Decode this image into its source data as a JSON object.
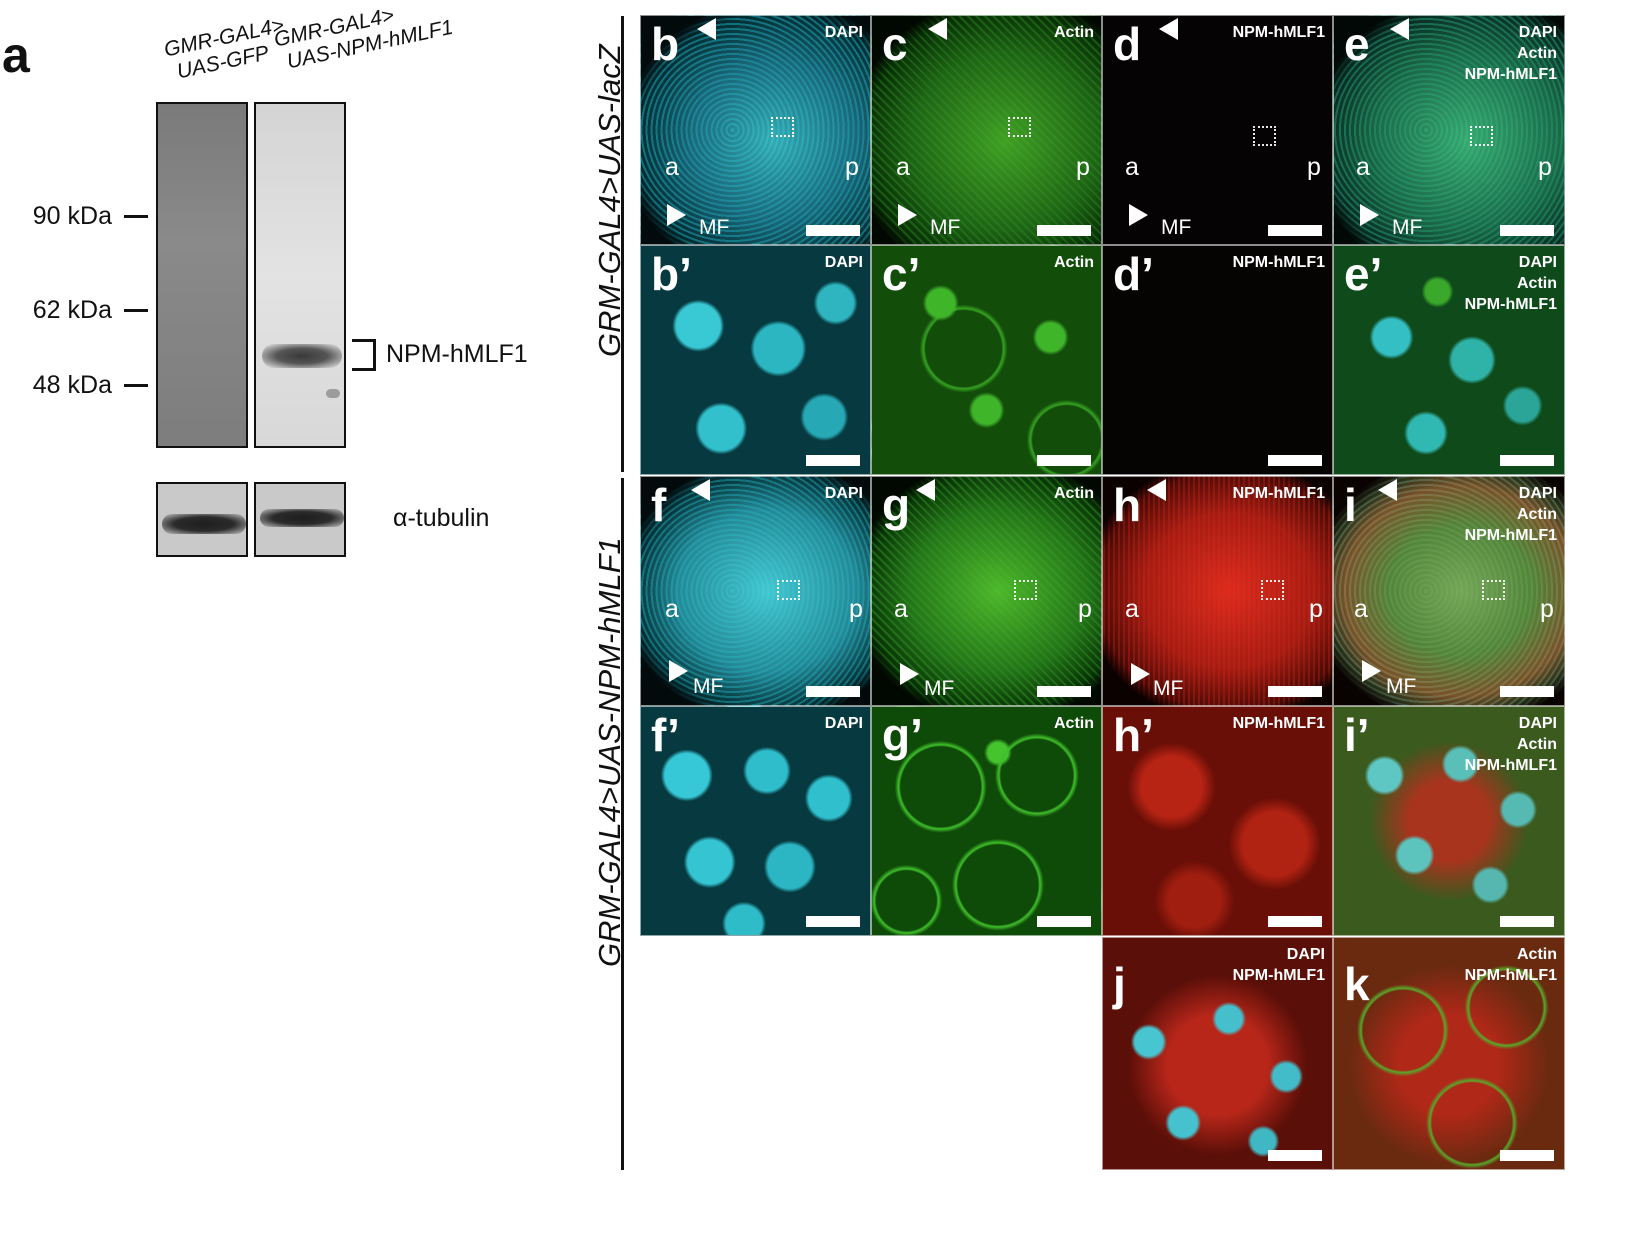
{
  "figure": {
    "panel_a": {
      "letter": "a",
      "lanes": [
        "GMR-GAL4>\nUAS-GFP",
        "GMR-GAL4>\nUAS-NPM-hMLF1"
      ],
      "lane1_line1": "GMR-GAL4>",
      "lane1_line2": "UAS-GFP",
      "lane2_line1": "GMR-GAL4>",
      "lane2_line2": "UAS-NPM-hMLF1",
      "markers": [
        "90 kDa",
        "62 kDa",
        "48 kDa"
      ],
      "band_label": "NPM-hMLF1",
      "loading_control": "α-tubulin"
    },
    "genotype_top": "GRM-GAL4>UAS-lacZ",
    "genotype_bottom": "GRM-GAL4>UAS-NPM-hMLF1",
    "tiles": {
      "b": {
        "letter": "b",
        "stain": "DAPI"
      },
      "c": {
        "letter": "c",
        "stain": "Actin"
      },
      "d": {
        "letter": "d",
        "stain": "NPM-hMLF1"
      },
      "e": {
        "letter": "e",
        "stain": "DAPI\nActin\nNPM-hMLF1"
      },
      "b2": {
        "letter": "b’",
        "stain": "DAPI"
      },
      "c2": {
        "letter": "c’",
        "stain": "Actin"
      },
      "d2": {
        "letter": "d’",
        "stain": "NPM-hMLF1"
      },
      "e2": {
        "letter": "e’",
        "stain": "DAPI\nActin\nNPM-hMLF1"
      },
      "f": {
        "letter": "f",
        "stain": "DAPI"
      },
      "g": {
        "letter": "g",
        "stain": "Actin"
      },
      "h": {
        "letter": "h",
        "stain": "NPM-hMLF1"
      },
      "i": {
        "letter": "i",
        "stain": "DAPI\nActin\nNPM-hMLF1"
      },
      "f2": {
        "letter": "f’",
        "stain": "DAPI"
      },
      "g2": {
        "letter": "g’",
        "stain": "Actin"
      },
      "h2": {
        "letter": "h’",
        "stain": "NPM-hMLF1"
      },
      "i2": {
        "letter": "i’",
        "stain": "DAPI\nActin\nNPM-hMLF1"
      },
      "j": {
        "letter": "j",
        "stain": "DAPI\nNPM-hMLF1"
      },
      "k": {
        "letter": "k",
        "stain": "Actin\nNPM-hMLF1"
      }
    },
    "orientation": {
      "anterior": "a",
      "posterior": "p",
      "furrow": "MF"
    }
  }
}
